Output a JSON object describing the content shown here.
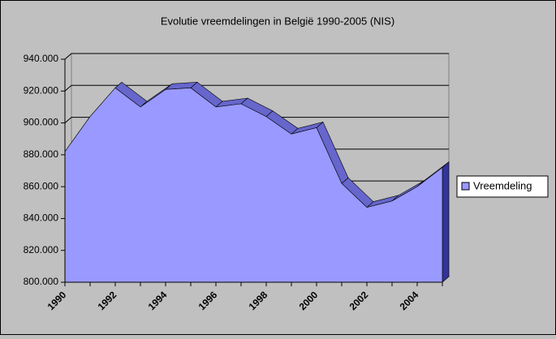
{
  "chart_data": {
    "type": "area3d",
    "title": "Evolutie vreemdelingen in België 1990-2005 (NIS)",
    "categories": [
      "1990",
      null,
      "1992",
      null,
      "1994",
      null,
      "1996",
      null,
      "1998",
      null,
      "2000",
      null,
      "2002",
      null,
      "2004",
      null
    ],
    "series": [
      {
        "name": "Vreemdeling",
        "color": "#9999ff",
        "values": [
          882000,
          904000,
          922000,
          910000,
          921000,
          922000,
          910000,
          912000,
          904000,
          893000,
          897000,
          862000,
          847000,
          851000,
          860000,
          872000
        ]
      }
    ],
    "ylim": [
      800000,
      940000
    ],
    "yticks": [
      {
        "value": 800000,
        "label": "800.000"
      },
      {
        "value": 820000,
        "label": "820.000"
      },
      {
        "value": 840000,
        "label": "840.000"
      },
      {
        "value": 860000,
        "label": "860.000"
      },
      {
        "value": 880000,
        "label": "880.000"
      },
      {
        "value": 900000,
        "label": "900.000"
      },
      {
        "value": 920000,
        "label": "920.000"
      },
      {
        "value": 940000,
        "label": "940.000"
      }
    ],
    "grid": true,
    "legend": "right"
  }
}
